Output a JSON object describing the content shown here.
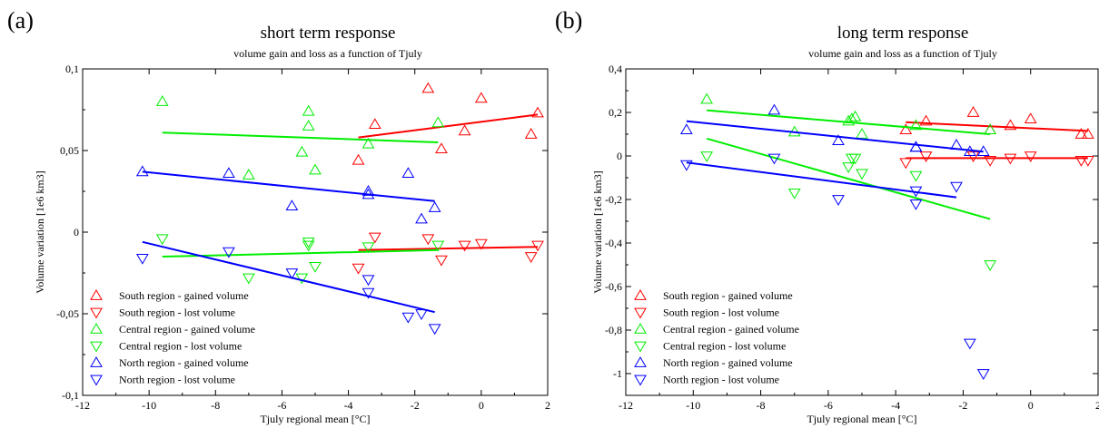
{
  "chart_data": [
    {
      "type": "scatter",
      "panel_label": "(a)",
      "title": "short term response",
      "subtitle": "volume gain and loss as a function of Tjuly",
      "xlabel": "Tjuly regional mean [°C]",
      "ylabel": "Volume variation [1e6 km3]",
      "xlim": [
        -12,
        2
      ],
      "ylim": [
        -0.1,
        0.1
      ],
      "x_ticks": [
        -12,
        -10,
        -8,
        -6,
        -4,
        -2,
        0,
        2
      ],
      "x_tick_labels": [
        "-12",
        "-10",
        "-8",
        "-6",
        "-4",
        "-2",
        "0",
        "2"
      ],
      "y_ticks": [
        -0.1,
        -0.05,
        0,
        0.05,
        0.1
      ],
      "y_tick_labels": [
        "-0,1",
        "-0,05",
        "0",
        "0,05",
        "0,1"
      ],
      "grid": false,
      "legend_position": "bottom-left",
      "series": [
        {
          "name": "South region - gained volume",
          "marker": "triangle-up",
          "color": "#ff0000",
          "x": [
            -3.7,
            -3.2,
            -1.6,
            -1.2,
            -0.5,
            0.0,
            1.5,
            1.7
          ],
          "y": [
            0.044,
            0.066,
            0.088,
            0.051,
            0.062,
            0.082,
            0.06,
            0.073
          ],
          "fit": [
            [
              -3.7,
              0.058
            ],
            [
              1.7,
              0.072
            ]
          ]
        },
        {
          "name": "South region - lost volume",
          "marker": "triangle-down",
          "color": "#ff0000",
          "x": [
            -3.7,
            -3.2,
            -1.6,
            -1.2,
            -0.5,
            0.0,
            1.5,
            1.7
          ],
          "y": [
            -0.022,
            -0.003,
            -0.004,
            -0.017,
            -0.008,
            -0.007,
            -0.015,
            -0.008
          ],
          "fit": [
            [
              -3.7,
              -0.011
            ],
            [
              1.7,
              -0.009
            ]
          ]
        },
        {
          "name": "Central region - gained volume",
          "marker": "triangle-up",
          "color": "#00ee00",
          "x": [
            -9.6,
            -7.0,
            -5.4,
            -5.2,
            -5.2,
            -5.0,
            -3.4,
            -1.3
          ],
          "y": [
            0.08,
            0.035,
            0.049,
            0.065,
            0.074,
            0.038,
            0.054,
            0.067
          ],
          "fit": [
            [
              -9.6,
              0.061
            ],
            [
              -1.3,
              0.055
            ]
          ]
        },
        {
          "name": "Central region - lost volume",
          "marker": "triangle-down",
          "color": "#00ee00",
          "x": [
            -9.6,
            -7.0,
            -5.4,
            -5.2,
            -5.2,
            -5.0,
            -3.4,
            -1.3
          ],
          "y": [
            -0.004,
            -0.028,
            -0.028,
            -0.006,
            -0.008,
            -0.021,
            -0.009,
            -0.008
          ],
          "fit": [
            [
              -9.6,
              -0.015
            ],
            [
              -1.3,
              -0.011
            ]
          ]
        },
        {
          "name": "North region - gained volume",
          "marker": "triangle-up",
          "color": "#0000ff",
          "x": [
            -10.2,
            -7.6,
            -5.7,
            -3.4,
            -3.4,
            -2.2,
            -1.8,
            -1.4
          ],
          "y": [
            0.037,
            0.036,
            0.016,
            0.023,
            0.025,
            0.036,
            0.008,
            0.015
          ],
          "fit": [
            [
              -10.2,
              0.037
            ],
            [
              -1.4,
              0.019
            ]
          ]
        },
        {
          "name": "North region - lost volume",
          "marker": "triangle-down",
          "color": "#0000ff",
          "x": [
            -10.2,
            -7.6,
            -5.7,
            -3.4,
            -3.4,
            -2.2,
            -1.8,
            -1.4
          ],
          "y": [
            -0.016,
            -0.012,
            -0.025,
            -0.029,
            -0.037,
            -0.052,
            -0.05,
            -0.059
          ],
          "fit": [
            [
              -10.2,
              -0.006
            ],
            [
              -1.4,
              -0.049
            ]
          ]
        }
      ]
    },
    {
      "type": "scatter",
      "panel_label": "(b)",
      "title": "long term response",
      "subtitle": "volume gain and loss as a function of Tjuly",
      "xlabel": "Tjuly regional mean [°C]",
      "ylabel": "Volume variation [1e6 km3]",
      "xlim": [
        -12,
        2
      ],
      "ylim": [
        -1.1,
        0.4
      ],
      "x_ticks": [
        -12,
        -10,
        -8,
        -6,
        -4,
        -2,
        0,
        2
      ],
      "x_tick_labels": [
        "-12",
        "-10",
        "-8",
        "-6",
        "-4",
        "-2",
        "0",
        "2"
      ],
      "y_ticks": [
        -1.0,
        -0.8,
        -0.6,
        -0.4,
        -0.2,
        0,
        0.2,
        0.4
      ],
      "y_tick_labels": [
        "-1",
        "-0,8",
        "-0,6",
        "-0,4",
        "-0,2",
        "0",
        "0,2",
        "0,4"
      ],
      "grid": false,
      "legend_position": "bottom-left",
      "series": [
        {
          "name": "South region - gained volume",
          "marker": "triangle-up",
          "color": "#ff0000",
          "x": [
            -3.7,
            -3.1,
            -1.7,
            -1.2,
            -0.6,
            0.0,
            1.5,
            1.7
          ],
          "y": [
            0.12,
            0.16,
            0.2,
            0.12,
            0.14,
            0.17,
            0.1,
            0.1
          ],
          "fit": [
            [
              -3.7,
              0.155
            ],
            [
              1.7,
              0.115
            ]
          ]
        },
        {
          "name": "South region - lost volume",
          "marker": "triangle-down",
          "color": "#ff0000",
          "x": [
            -3.7,
            -3.1,
            -1.7,
            -1.2,
            -0.6,
            0.0,
            1.5,
            1.7
          ],
          "y": [
            -0.03,
            0.0,
            0.0,
            -0.02,
            -0.01,
            0.0,
            -0.02,
            -0.02
          ],
          "fit": [
            [
              -3.7,
              -0.01
            ],
            [
              1.7,
              -0.01
            ]
          ]
        },
        {
          "name": "Central region - gained volume",
          "marker": "triangle-up",
          "color": "#00ee00",
          "x": [
            -9.6,
            -7.0,
            -5.4,
            -5.3,
            -5.2,
            -5.0,
            -3.4,
            -1.2
          ],
          "y": [
            0.26,
            0.11,
            0.16,
            0.17,
            0.18,
            0.1,
            0.14,
            0.12
          ],
          "fit": [
            [
              -9.6,
              0.21
            ],
            [
              -1.2,
              0.1
            ]
          ]
        },
        {
          "name": "Central region - lost volume",
          "marker": "triangle-down",
          "color": "#00ee00",
          "x": [
            -9.6,
            -7.0,
            -5.4,
            -5.3,
            -5.2,
            -5.0,
            -3.4,
            -1.2
          ],
          "y": [
            0.0,
            -0.17,
            -0.05,
            -0.01,
            -0.01,
            -0.08,
            -0.09,
            -0.5
          ],
          "fit": [
            [
              -9.6,
              0.08
            ],
            [
              -1.2,
              -0.29
            ]
          ]
        },
        {
          "name": "North region - gained volume",
          "marker": "triangle-up",
          "color": "#0000ff",
          "x": [
            -10.2,
            -7.6,
            -5.7,
            -3.4,
            -3.4,
            -2.2,
            -1.8,
            -1.4
          ],
          "y": [
            0.12,
            0.21,
            0.07,
            0.04,
            0.04,
            0.05,
            0.02,
            0.02
          ],
          "fit": [
            [
              -10.2,
              0.16
            ],
            [
              -1.4,
              0.02
            ]
          ]
        },
        {
          "name": "North region - lost volume",
          "marker": "triangle-down",
          "color": "#0000ff",
          "x": [
            -10.2,
            -7.6,
            -5.7,
            -3.4,
            -3.4,
            -2.2,
            -1.8,
            -1.4
          ],
          "y": [
            -0.04,
            -0.01,
            -0.2,
            -0.16,
            -0.22,
            -0.14,
            -0.86,
            -1.0
          ],
          "fit": [
            [
              -10.2,
              -0.03
            ],
            [
              -2.2,
              -0.19
            ]
          ]
        }
      ]
    }
  ]
}
